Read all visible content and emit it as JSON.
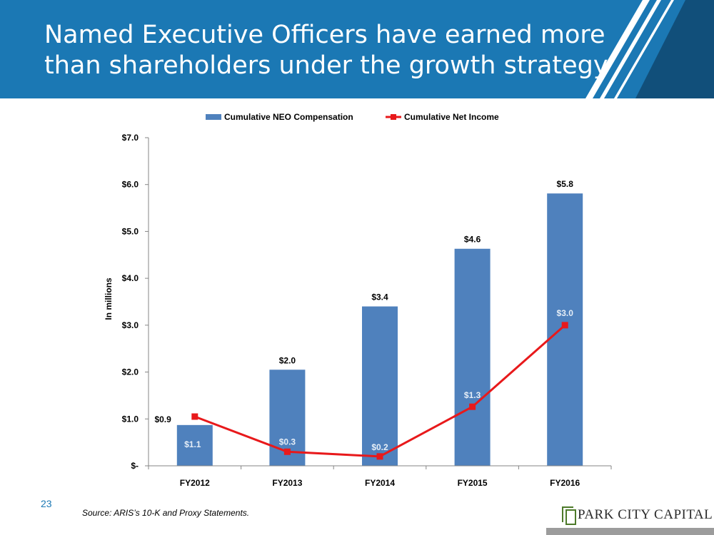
{
  "header": {
    "title_line1": "Named Executive Officers have earned more",
    "title_line2": "than shareholders under the growth strategy",
    "background": "#1b78b4"
  },
  "chart_data": {
    "type": "bar+line",
    "categories": [
      "FY2012",
      "FY2013",
      "FY2014",
      "FY2015",
      "FY2016"
    ],
    "series": [
      {
        "name": "Cumulative NEO Compensation",
        "type": "bar",
        "color": "#4f81bd",
        "values": [
          0.87,
          2.05,
          3.4,
          4.63,
          5.81
        ],
        "labels": [
          "$0.9",
          "$2.0",
          "$3.4",
          "$4.6",
          "$5.8"
        ]
      },
      {
        "name": "Cumulative Net Income",
        "type": "line",
        "color": "#e8191b",
        "values": [
          1.05,
          0.3,
          0.2,
          1.26,
          3.0
        ],
        "labels": [
          "$1.1",
          "$0.3",
          "$0.2",
          "$1.3",
          "$3.0"
        ]
      }
    ],
    "ylabel": "In millions",
    "ylim": [
      0,
      7
    ],
    "yticks": [
      0,
      1,
      2,
      3,
      4,
      5,
      6,
      7
    ],
    "ytick_labels": [
      "$-",
      "$1.0",
      "$2.0",
      "$3.0",
      "$4.0",
      "$5.0",
      "$6.0",
      "$7.0"
    ],
    "legend_position": "top"
  },
  "footer": {
    "page_number": "23",
    "source": "Source: ARIS’s 10-K and Proxy Statements.",
    "logo_text": "PARK CITY CAPITAL"
  }
}
